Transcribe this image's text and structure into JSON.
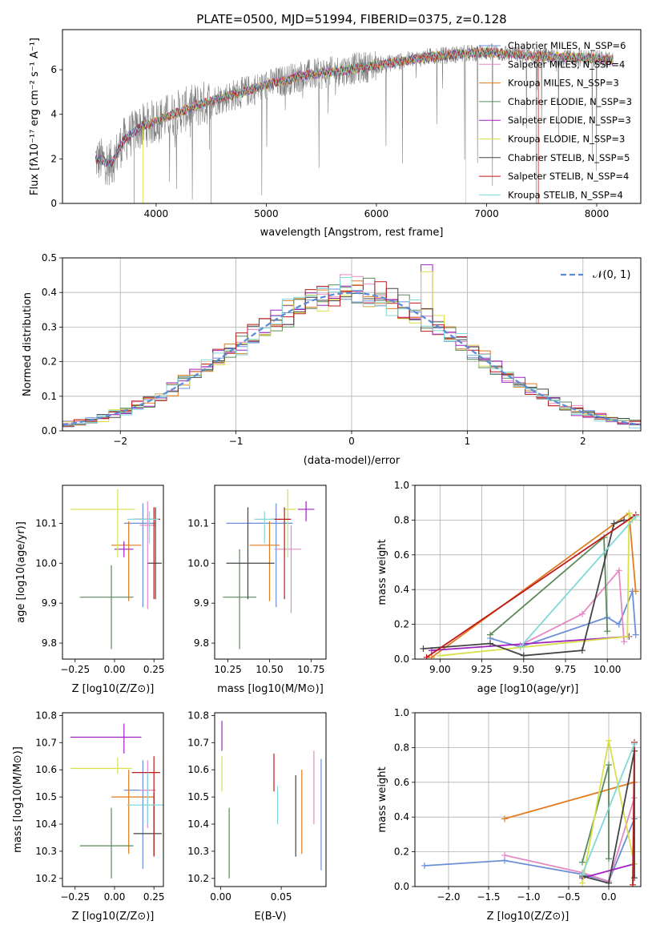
{
  "colors": {
    "Chabrier MILES": "#6a8fd8",
    "Salpeter MILES": "#e68ac3",
    "Kroupa MILES": "#e07b1e",
    "Chabrier ELODIE": "#5a8a5a",
    "Salpeter ELODIE": "#a020c0",
    "Kroupa ELODIE": "#d8e04a",
    "Chabrier STELIB": "#444444",
    "Salpeter STELIB": "#c01818",
    "Kroupa STELIB": "#80d8d8"
  },
  "chart_data": [
    {
      "id": "spectrum",
      "type": "line",
      "title": "PLATE=0500, MJD=51994, FIBERID=0375, z=0.128",
      "xlabel": "wavelength [Angstrom, rest frame]",
      "ylabel": "Flux [fλ10⁻¹⁷ erg cm⁻² s⁻¹ A⁻¹]",
      "xlim": [
        3150,
        8400
      ],
      "ylim": [
        0,
        7.8
      ],
      "xticks": [
        4000,
        5000,
        6000,
        7000,
        8000
      ],
      "yticks": [
        0,
        2,
        4,
        6
      ],
      "legend_position": "top-right",
      "legend": [
        {
          "name": "Chabrier MILES",
          "nssp": "N_SSP=6"
        },
        {
          "name": "Salpeter MILES",
          "nssp": "N_SSP=4"
        },
        {
          "name": "Kroupa MILES",
          "nssp": "N_SSP=3"
        },
        {
          "name": "Chabrier ELODIE",
          "nssp": "N_SSP=3"
        },
        {
          "name": "Salpeter ELODIE",
          "nssp": "N_SSP=3"
        },
        {
          "name": "Kroupa ELODIE",
          "nssp": "N_SSP=3"
        },
        {
          "name": "Chabrier STELIB",
          "nssp": "N_SSP=5"
        },
        {
          "name": "Salpeter STELIB",
          "nssp": "N_SSP=4"
        },
        {
          "name": "Kroupa STELIB",
          "nssp": "N_SSP=4"
        }
      ],
      "data_series": {
        "name": "data",
        "color": "#808080",
        "x_range": [
          3450,
          8150
        ]
      },
      "continuum_knots": {
        "x": [
          3450,
          3600,
          3700,
          3850,
          4000,
          4200,
          4500,
          4800,
          5000,
          5300,
          5600,
          6000,
          6500,
          7000,
          7500,
          8000,
          8150
        ],
        "y": [
          2.0,
          1.8,
          2.8,
          3.4,
          3.7,
          4.1,
          4.6,
          5.0,
          5.3,
          5.7,
          5.9,
          6.2,
          6.6,
          6.8,
          6.6,
          6.5,
          6.4
        ]
      }
    },
    {
      "id": "residuals",
      "type": "line",
      "xlabel": "(data-model)/error",
      "ylabel": "Normed distribution",
      "xlim": [
        -2.5,
        2.5
      ],
      "ylim": [
        0,
        0.5
      ],
      "xticks": [
        -2,
        -1,
        0,
        1,
        2
      ],
      "yticks": [
        0.0,
        0.1,
        0.2,
        0.3,
        0.4,
        0.5
      ],
      "grid": true,
      "legend_position": "top-right",
      "gaussian": {
        "name": "𝒩(0, 1)",
        "mean": 0,
        "sigma": 1,
        "color": "#5a8ad8"
      },
      "hist_bin_width": 0.1
    },
    {
      "id": "age-vs-Z",
      "type": "scatter",
      "xlabel": "Z [log10(Z/Z⊙)]",
      "ylabel": "age [log10(age/yr)]",
      "xlim": [
        -0.33,
        0.31
      ],
      "ylim": [
        9.76,
        10.195
      ],
      "xticks": [
        -0.25,
        0.0,
        0.25
      ],
      "yticks": [
        9.8,
        9.9,
        10.0,
        10.1
      ],
      "points": [
        {
          "model": "Chabrier MILES",
          "x": 0.18,
          "y": 10.1,
          "xerr": [
            0.12,
            0.08
          ],
          "yerr": [
            0.21,
            0.05
          ]
        },
        {
          "model": "Salpeter MILES",
          "x": 0.21,
          "y": 10.095,
          "xerr": [
            0.05,
            0.05
          ],
          "yerr": [
            0.21,
            0.06
          ]
        },
        {
          "model": "Kroupa MILES",
          "x": 0.09,
          "y": 10.045,
          "xerr": [
            0.11,
            0.08
          ],
          "yerr": [
            0.14,
            0.06
          ]
        },
        {
          "model": "Chabrier ELODIE",
          "x": -0.02,
          "y": 9.915,
          "xerr": [
            0.2,
            0.14
          ],
          "yerr": [
            0.13,
            0.08
          ]
        },
        {
          "model": "Salpeter ELODIE",
          "x": 0.06,
          "y": 10.035,
          "xerr": [
            0.06,
            0.06
          ],
          "yerr": [
            0.02,
            0.02
          ]
        },
        {
          "model": "Kroupa ELODIE",
          "x": 0.02,
          "y": 10.135,
          "xerr": [
            0.3,
            0.11
          ],
          "yerr": [
            0.12,
            0.05
          ]
        },
        {
          "model": "Chabrier STELIB",
          "x": 0.26,
          "y": 10.0,
          "xerr": [
            0.05,
            0.04
          ],
          "yerr": [
            0.09,
            0.14
          ]
        },
        {
          "model": "Salpeter STELIB",
          "x": 0.25,
          "y": 10.11,
          "xerr": [
            0.13,
            0.04
          ],
          "yerr": [
            0.2,
            0.03
          ]
        },
        {
          "model": "Kroupa STELIB",
          "x": 0.22,
          "y": 10.11,
          "xerr": [
            0.14,
            0.06
          ],
          "yerr": [
            0.06,
            0.02
          ]
        }
      ]
    },
    {
      "id": "age-vs-mass",
      "type": "scatter",
      "xlabel": "mass [log10(M/M⊙)]",
      "ylabel": "",
      "xlim": [
        10.17,
        10.84
      ],
      "ylim": [
        9.76,
        10.195
      ],
      "xticks": [
        10.25,
        10.5,
        10.75
      ],
      "yticks": [
        9.8,
        9.9,
        10.0,
        10.1
      ],
      "points": [
        {
          "model": "Chabrier MILES",
          "x": 10.54,
          "y": 10.1,
          "xerr": [
            0.3,
            0.1
          ],
          "yerr": [
            0.21,
            0.05
          ]
        },
        {
          "model": "Salpeter MILES",
          "x": 10.63,
          "y": 10.035,
          "xerr": [
            0.1,
            0.06
          ],
          "yerr": [
            0.16,
            0.06
          ]
        },
        {
          "model": "Kroupa MILES",
          "x": 10.5,
          "y": 10.045,
          "xerr": [
            0.12,
            0.06
          ],
          "yerr": [
            0.14,
            0.06
          ]
        },
        {
          "model": "Chabrier ELODIE",
          "x": 10.32,
          "y": 9.915,
          "xerr": [
            0.1,
            0.1
          ],
          "yerr": [
            0.13,
            0.12
          ]
        },
        {
          "model": "Salpeter ELODIE",
          "x": 10.72,
          "y": 10.135,
          "xerr": [
            0.05,
            0.05
          ],
          "yerr": [
            0.03,
            0.02
          ]
        },
        {
          "model": "Kroupa ELODIE",
          "x": 10.61,
          "y": 10.135,
          "xerr": [
            0.02,
            0.05
          ],
          "yerr": [
            0.12,
            0.05
          ]
        },
        {
          "model": "Chabrier STELIB",
          "x": 10.37,
          "y": 10.0,
          "xerr": [
            0.13,
            0.16
          ],
          "yerr": [
            0.09,
            0.14
          ]
        },
        {
          "model": "Salpeter STELIB",
          "x": 10.59,
          "y": 10.11,
          "xerr": [
            0.08,
            0.04
          ],
          "yerr": [
            0.2,
            0.03
          ]
        },
        {
          "model": "Kroupa STELIB",
          "x": 10.47,
          "y": 10.11,
          "xerr": [
            0.06,
            0.06
          ],
          "yerr": [
            0.06,
            0.02
          ]
        }
      ]
    },
    {
      "id": "mass-weight-vs-age",
      "type": "line",
      "xlabel": "age [log10(age/yr)]",
      "ylabel": "mass weight",
      "xlim": [
        8.85,
        10.2
      ],
      "ylim": [
        0,
        1.0
      ],
      "xticks": [
        9.0,
        9.25,
        9.5,
        9.75,
        10.0
      ],
      "yticks": [
        0.0,
        0.2,
        0.4,
        0.6,
        0.8,
        1.0
      ],
      "grid": true,
      "series": [
        {
          "model": "Chabrier MILES",
          "x": [
            9.3,
            9.48,
            10.0,
            10.07,
            10.15,
            10.17
          ],
          "y": [
            0.12,
            0.07,
            0.24,
            0.2,
            0.39,
            0.14
          ]
        },
        {
          "model": "Salpeter MILES",
          "x": [
            9.48,
            9.85,
            10.07,
            10.1
          ],
          "y": [
            0.08,
            0.26,
            0.51,
            0.1
          ]
        },
        {
          "model": "Kroupa MILES",
          "x": [
            8.95,
            10.13,
            10.17
          ],
          "y": [
            0.01,
            0.84,
            0.39
          ]
        },
        {
          "model": "Chabrier ELODIE",
          "x": [
            9.3,
            9.98,
            10.0
          ],
          "y": [
            0.14,
            0.7,
            0.16
          ]
        },
        {
          "model": "Salpeter ELODIE",
          "x": [
            8.95,
            10.13
          ],
          "y": [
            0.05,
            0.13
          ]
        },
        {
          "model": "Kroupa ELODIE",
          "x": [
            9.0,
            10.12,
            10.13,
            10.15
          ],
          "y": [
            0.02,
            0.13,
            0.84,
            0.8
          ]
        },
        {
          "model": "Chabrier STELIB",
          "x": [
            8.9,
            9.3,
            9.5,
            9.85,
            10.04,
            10.1
          ],
          "y": [
            0.06,
            0.09,
            0.02,
            0.05,
            0.78,
            0.8
          ]
        },
        {
          "model": "Salpeter STELIB",
          "x": [
            8.92,
            10.17
          ],
          "y": [
            0.01,
            0.83
          ]
        },
        {
          "model": "Kroupa STELIB",
          "x": [
            9.48,
            10.17
          ],
          "y": [
            0.07,
            0.82
          ]
        }
      ]
    },
    {
      "id": "mass-vs-Z",
      "type": "scatter",
      "xlabel": "Z [log10(Z/Z⊙)]",
      "ylabel": "mass [log10(M/M⊙)]",
      "xlim": [
        -0.33,
        0.31
      ],
      "ylim": [
        10.17,
        10.81
      ],
      "xticks": [
        -0.25,
        0.0,
        0.25
      ],
      "yticks": [
        10.2,
        10.3,
        10.4,
        10.5,
        10.6,
        10.7,
        10.8
      ],
      "points": [
        {
          "model": "Chabrier MILES",
          "x": 0.18,
          "y": 10.525,
          "xerr": [
            0.12,
            0.08
          ],
          "yerr": [
            0.29,
            0.11
          ]
        },
        {
          "model": "Salpeter MILES",
          "x": 0.21,
          "y": 10.525,
          "xerr": [
            0.05,
            0.05
          ],
          "yerr": [
            0.14,
            0.11
          ]
        },
        {
          "model": "Kroupa MILES",
          "x": 0.09,
          "y": 10.5,
          "xerr": [
            0.11,
            0.16
          ],
          "yerr": [
            0.21,
            0.1
          ]
        },
        {
          "model": "Chabrier ELODIE",
          "x": -0.02,
          "y": 10.32,
          "xerr": [
            0.2,
            0.14
          ],
          "yerr": [
            0.12,
            0.14
          ]
        },
        {
          "model": "Salpeter ELODIE",
          "x": 0.06,
          "y": 10.72,
          "xerr": [
            0.34,
            0.11
          ],
          "yerr": [
            0.06,
            0.05
          ]
        },
        {
          "model": "Kroupa ELODIE",
          "x": 0.02,
          "y": 10.605,
          "xerr": [
            0.3,
            0.09
          ],
          "yerr": [
            0.02,
            0.04
          ]
        },
        {
          "model": "Chabrier STELIB",
          "x": 0.25,
          "y": 10.365,
          "xerr": [
            0.13,
            0.05
          ],
          "yerr": [
            0.08,
            0.15
          ]
        },
        {
          "model": "Salpeter STELIB",
          "x": 0.25,
          "y": 10.59,
          "xerr": [
            0.14,
            0.04
          ],
          "yerr": [
            0.31,
            0.06
          ]
        },
        {
          "model": "Kroupa STELIB",
          "x": 0.21,
          "y": 10.47,
          "xerr": [
            0.13,
            0.1
          ],
          "yerr": [
            0.07,
            0.12
          ]
        }
      ]
    },
    {
      "id": "mass-vs-EBV",
      "type": "scatter",
      "xlabel": "E(B-V)",
      "ylabel": "",
      "xlim": [
        -0.005,
        0.087
      ],
      "ylim": [
        10.17,
        10.81
      ],
      "xticks": [
        0.0,
        0.05
      ],
      "yticks": [
        10.2,
        10.3,
        10.4,
        10.5,
        10.6,
        10.7,
        10.8
      ],
      "points": [
        {
          "model": "Chabrier MILES",
          "x": 0.083,
          "y": 10.44,
          "yerr": [
            0.21,
            0.2
          ]
        },
        {
          "model": "Salpeter MILES",
          "x": 0.077,
          "y": 10.51,
          "yerr": [
            0.11,
            0.16
          ]
        },
        {
          "model": "Kroupa MILES",
          "x": 0.067,
          "y": 10.5,
          "yerr": [
            0.21,
            0.1
          ]
        },
        {
          "model": "Chabrier ELODIE",
          "x": 0.007,
          "y": 10.32,
          "yerr": [
            0.12,
            0.14
          ]
        },
        {
          "model": "Salpeter ELODIE",
          "x": 0.001,
          "y": 10.72,
          "yerr": [
            0.05,
            0.06
          ]
        },
        {
          "model": "Kroupa ELODIE",
          "x": 0.001,
          "y": 10.6,
          "yerr": [
            0.08,
            0.05
          ]
        },
        {
          "model": "Chabrier STELIB",
          "x": 0.062,
          "y": 10.43,
          "yerr": [
            0.15,
            0.15
          ]
        },
        {
          "model": "Salpeter STELIB",
          "x": 0.044,
          "y": 10.59,
          "yerr": [
            0.07,
            0.07
          ]
        },
        {
          "model": "Kroupa STELIB",
          "x": 0.047,
          "y": 10.47,
          "yerr": [
            0.07,
            0.07
          ]
        }
      ]
    },
    {
      "id": "mass-weight-vs-Z",
      "type": "line",
      "xlabel": "Z [log10(Z/Z⊙)]",
      "ylabel": "mass weight",
      "xlim": [
        -2.42,
        0.4
      ],
      "ylim": [
        0,
        1.0
      ],
      "xticks": [
        -2.0,
        -1.5,
        -1.0,
        -0.5,
        0.0
      ],
      "yticks": [
        0.0,
        0.2,
        0.4,
        0.6,
        0.8,
        1.0
      ],
      "grid": true,
      "series": [
        {
          "model": "Chabrier MILES",
          "x": [
            -2.3,
            -1.3,
            -0.33,
            0.0,
            0.32
          ],
          "y": [
            0.12,
            0.15,
            0.07,
            0.03,
            0.39
          ]
        },
        {
          "model": "Salpeter MILES",
          "x": [
            -1.3,
            -0.33,
            0.0,
            0.32
          ],
          "y": [
            0.18,
            0.08,
            0.03,
            0.51
          ]
        },
        {
          "model": "Kroupa MILES",
          "x": [
            -1.3,
            0.32
          ],
          "y": [
            0.39,
            0.6
          ]
        },
        {
          "model": "Chabrier ELODIE",
          "x": [
            -0.33,
            0.0,
            0.0
          ],
          "y": [
            0.14,
            0.7,
            0.16
          ]
        },
        {
          "model": "Salpeter ELODIE",
          "x": [
            -0.33,
            0.32
          ],
          "y": [
            0.05,
            0.13
          ]
        },
        {
          "model": "Kroupa ELODIE",
          "x": [
            -0.33,
            0.0,
            0.32
          ],
          "y": [
            0.02,
            0.84,
            0.13
          ]
        },
        {
          "model": "Chabrier STELIB",
          "x": [
            -0.33,
            0.0,
            0.32,
            0.32
          ],
          "y": [
            0.06,
            0.02,
            0.78,
            0.05
          ]
        },
        {
          "model": "Salpeter STELIB",
          "x": [
            0.3,
            0.32
          ],
          "y": [
            0.01,
            0.83
          ]
        },
        {
          "model": "Kroupa STELIB",
          "x": [
            -0.33,
            0.32
          ],
          "y": [
            0.07,
            0.82
          ]
        }
      ]
    }
  ]
}
